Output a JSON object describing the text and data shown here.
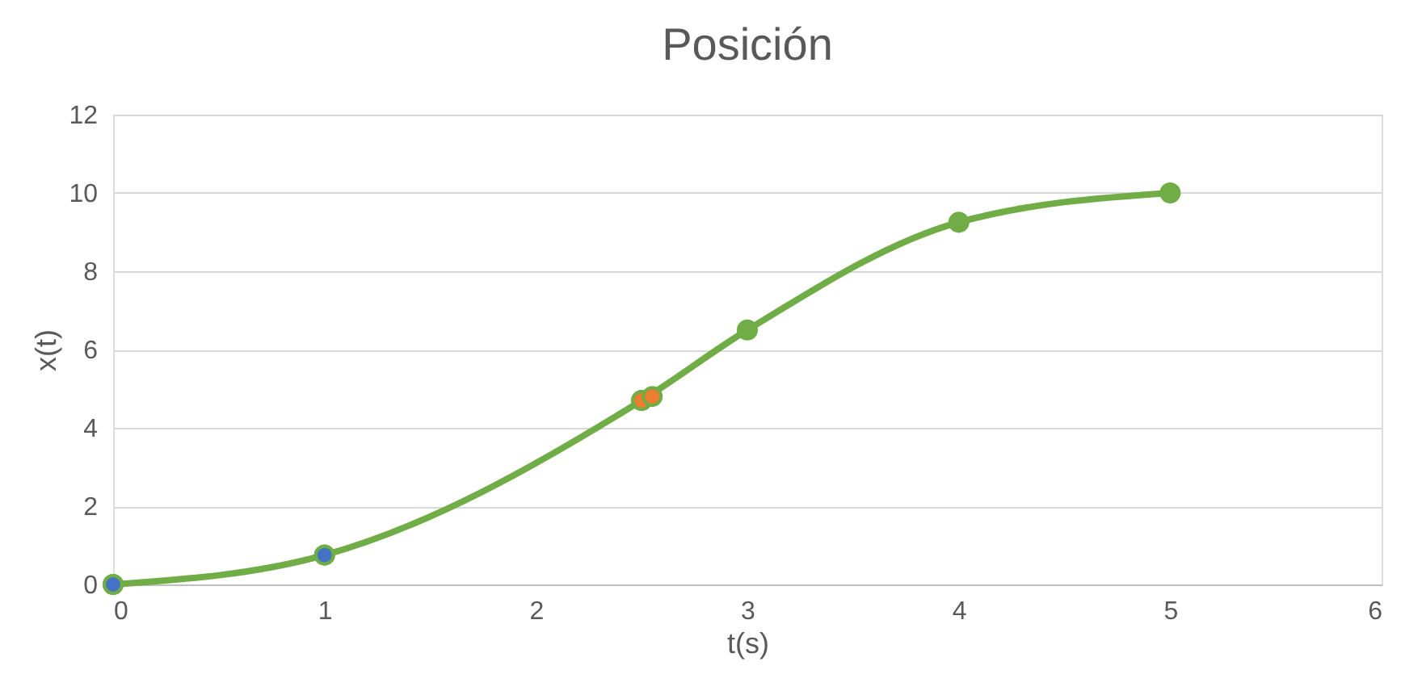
{
  "chart_data": {
    "type": "line",
    "title": "Posición",
    "xlabel": "t(s)",
    "ylabel": "x(t)",
    "xlim": [
      0,
      6
    ],
    "xticks": [
      0,
      1,
      2,
      3,
      4,
      5,
      6
    ],
    "ylim": [
      0,
      12
    ],
    "yticks": [
      0,
      2,
      4,
      6,
      8,
      10,
      12
    ],
    "grid": "y",
    "marker": "circle",
    "series": [
      {
        "color": "#70ad47",
        "x": [
          0,
          1,
          2.5,
          3,
          4,
          5
        ],
        "values": [
          0,
          0.75,
          4.7,
          6.5,
          9.25,
          10
        ]
      },
      {
        "type": "scatter",
        "color": "#4472c4",
        "x": [
          0,
          1
        ],
        "values": [
          0,
          0.75
        ]
      },
      {
        "type": "scatter",
        "color": "#ed7d31",
        "x": [
          2.5,
          2.55
        ],
        "values": [
          4.7,
          4.8
        ]
      }
    ]
  }
}
